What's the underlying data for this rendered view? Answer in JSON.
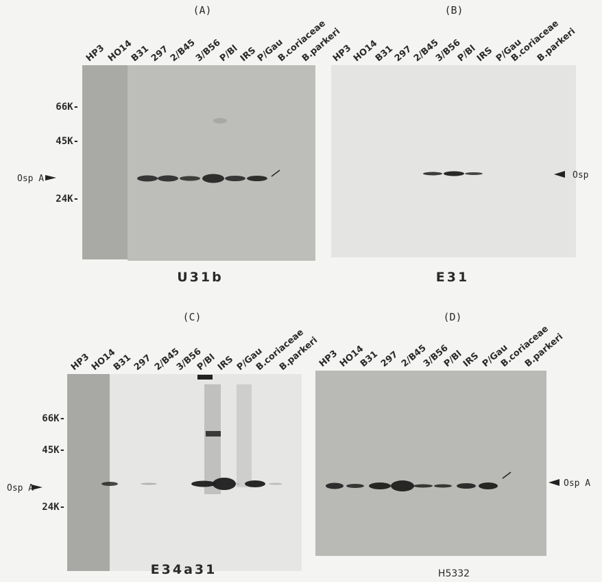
{
  "panels": [
    {
      "letter": "(A)",
      "lanes": [
        "HP3",
        "HO14",
        "B31",
        "297",
        "2/B45",
        "3/B56",
        "P/Bl",
        "IRS",
        "P/Gau",
        "B.coriaceae",
        "B.parkeri"
      ],
      "markers": [
        "66K-",
        "45K-",
        "24K-"
      ],
      "band_label": "Osp A",
      "caption": "U31b"
    },
    {
      "letter": "(B)",
      "lanes": [
        "HP3",
        "HO14",
        "B31",
        "297",
        "2/B45",
        "3/B56",
        "P/Bl",
        "IRS",
        "P/Gau",
        "B.coriaceae",
        "B.parkeri"
      ],
      "band_label": "Osp",
      "caption": "E31"
    },
    {
      "letter": "(C)",
      "lanes": [
        "HP3",
        "HO14",
        "B31",
        "297",
        "2/B45",
        "3/B56",
        "P/Bl",
        "IRS",
        "P/Gau",
        "B.coriaceae",
        "B.parkeri"
      ],
      "markers": [
        "66K-",
        "45K-",
        "24K-"
      ],
      "band_label": "Osp A",
      "caption": "E34a31"
    },
    {
      "letter": "(D)",
      "lanes": [
        "HP3",
        "HO14",
        "B31",
        "297",
        "2/B45",
        "3/B56",
        "P/Bl",
        "IRS",
        "P/Gau",
        "B.coriaceae",
        "B.parkeri"
      ],
      "band_label": "Osp A",
      "caption": "H5332"
    }
  ]
}
